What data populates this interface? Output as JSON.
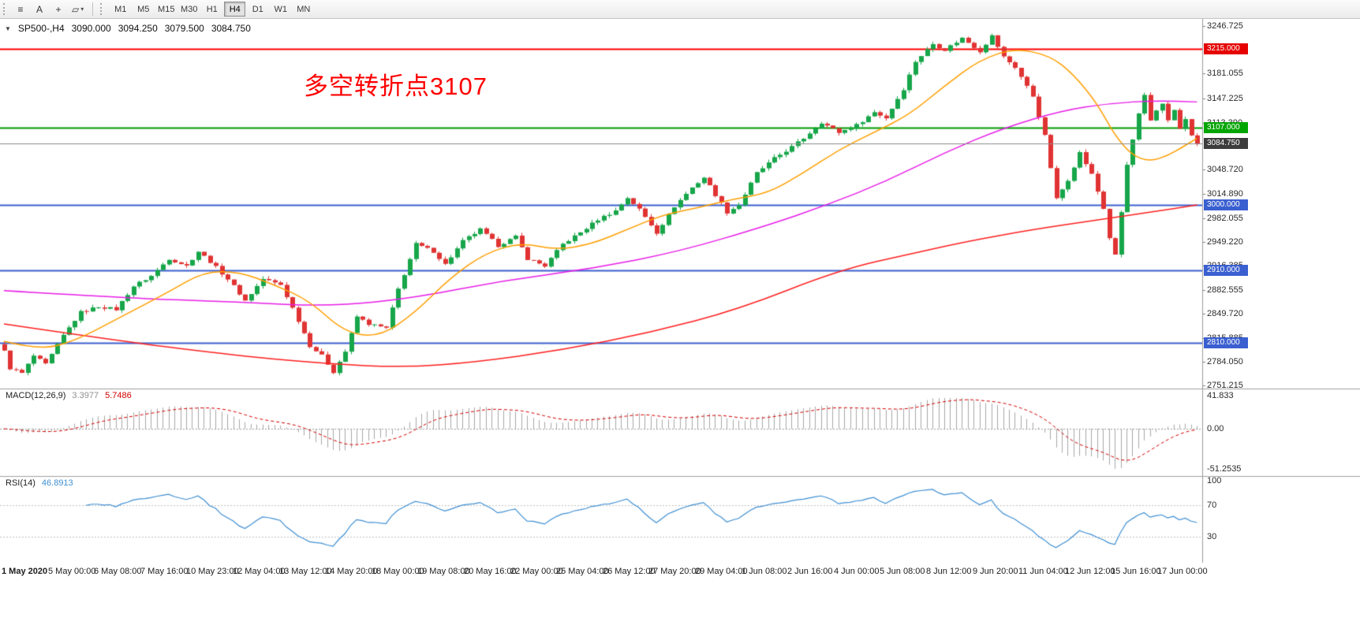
{
  "toolbar": {
    "icons": {
      "menu": "≡",
      "text_tool": "A",
      "crosshair": "+",
      "shapes": "▱",
      "caret_small": "▾"
    },
    "timeframes": [
      "M1",
      "M5",
      "M15",
      "M30",
      "H1",
      "H4",
      "D1",
      "W1",
      "MN"
    ],
    "active_timeframe": "H4"
  },
  "chart": {
    "header": {
      "caret": "▼",
      "symbol": "SP500-,H4",
      "open": "3090.000",
      "high": "3094.250",
      "low": "3079.500",
      "close": "3084.750"
    },
    "annotation": {
      "text": "多空转折点3107",
      "color": "#ff0000"
    },
    "hlines": [
      {
        "label": "3215.000",
        "price": 3215.0,
        "line_color": "#ff0000",
        "badge_color": "#e60000",
        "width": 2
      },
      {
        "label": "3107.000",
        "price": 3107.0,
        "line_color": "#009b00",
        "badge_color": "#00a500",
        "width": 2
      },
      {
        "label": "3000.000",
        "price": 3000.0,
        "line_color": "#3a5fd0",
        "badge_color": "#3a5fd0",
        "width": 2
      },
      {
        "label": "2910.000",
        "price": 2910.0,
        "line_color": "#3a5fd0",
        "badge_color": "#3a5fd0",
        "width": 2
      },
      {
        "label": "2810.000",
        "price": 2810.0,
        "line_color": "#3a5fd0",
        "badge_color": "#3a5fd0",
        "width": 2
      }
    ],
    "current_price": {
      "label": "3084.750",
      "price": 3084.75,
      "line_color": "#8c8c8c",
      "badge_color": "#3d3d3d"
    },
    "axis_ticks": [
      3246.725,
      3181.055,
      3147.225,
      3113.39,
      3048.72,
      3014.89,
      2982.055,
      2949.22,
      2916.385,
      2882.555,
      2849.72,
      2815.885,
      2784.05,
      2751.215
    ],
    "time_labels": [
      "1 May 2020",
      "5 May 00:00",
      "6 May 08:00",
      "7 May 16:00",
      "10 May 23:00",
      "12 May 04:00",
      "13 May 12:00",
      "14 May 20:00",
      "18 May 00:00",
      "19 May 08:00",
      "20 May 16:00",
      "22 May 00:00",
      "25 May 04:00",
      "26 May 12:00",
      "27 May 20:00",
      "29 May 04:00",
      "1 Jun 08:00",
      "2 Jun 16:00",
      "4 Jun 00:00",
      "5 Jun 08:00",
      "8 Jun 12:00",
      "9 Jun 20:00",
      "11 Jun 04:00",
      "12 Jun 12:00",
      "15 Jun 16:00",
      "17 Jun 00:00"
    ]
  },
  "macd": {
    "label": "MACD(12,26,9)",
    "value_main": "3.3977",
    "value_signal": "5.7486",
    "axis": [
      {
        "label": "41.833",
        "value": 41.833
      },
      {
        "label": "0.00",
        "value": 0
      },
      {
        "label": "-51.2535",
        "value": -51.2535
      }
    ]
  },
  "rsi": {
    "label": "RSI(14)",
    "value": "46.8913",
    "axis": [
      {
        "label": "100",
        "value": 100
      },
      {
        "label": "70",
        "value": 70
      },
      {
        "label": "30",
        "value": 30
      }
    ],
    "levels": [
      70,
      30
    ]
  },
  "chart_data": {
    "type": "candlestick",
    "symbol": "SP500-",
    "timeframe": "H4",
    "time_range": {
      "start": "1 May 2020",
      "end": "17 Jun 2020"
    },
    "current_ohlc": {
      "open": 3090.0,
      "high": 3094.25,
      "low": 3079.5,
      "close": 3084.75
    },
    "price_axis": {
      "max": 3246.725,
      "min": 2751.215
    },
    "key_levels": [
      3215,
      3107,
      3000,
      2910,
      2810
    ],
    "bar_count": 204,
    "bar_spacing": 7.45,
    "first_open": 2808,
    "last_close": 3084.75,
    "noise": 4,
    "wick": 4,
    "close_anchors": [
      [
        0,
        2798
      ],
      [
        1,
        2775
      ],
      [
        3,
        2768
      ],
      [
        5,
        2792
      ],
      [
        7,
        2780
      ],
      [
        10,
        2820
      ],
      [
        13,
        2852
      ],
      [
        16,
        2860
      ],
      [
        19,
        2856
      ],
      [
        22,
        2888
      ],
      [
        25,
        2902
      ],
      [
        28,
        2926
      ],
      [
        31,
        2916
      ],
      [
        33,
        2936
      ],
      [
        35,
        2922
      ],
      [
        38,
        2898
      ],
      [
        41,
        2868
      ],
      [
        44,
        2898
      ],
      [
        47,
        2890
      ],
      [
        49,
        2858
      ],
      [
        52,
        2806
      ],
      [
        54,
        2792
      ],
      [
        56,
        2770
      ],
      [
        58,
        2798
      ],
      [
        60,
        2846
      ],
      [
        62,
        2836
      ],
      [
        65,
        2830
      ],
      [
        67,
        2884
      ],
      [
        70,
        2946
      ],
      [
        73,
        2936
      ],
      [
        75,
        2918
      ],
      [
        78,
        2950
      ],
      [
        81,
        2966
      ],
      [
        84,
        2944
      ],
      [
        87,
        2956
      ],
      [
        89,
        2926
      ],
      [
        92,
        2916
      ],
      [
        95,
        2946
      ],
      [
        98,
        2962
      ],
      [
        101,
        2980
      ],
      [
        104,
        2992
      ],
      [
        106,
        3010
      ],
      [
        108,
        2994
      ],
      [
        111,
        2962
      ],
      [
        114,
        2998
      ],
      [
        117,
        3024
      ],
      [
        119,
        3038
      ],
      [
        121,
        3014
      ],
      [
        123,
        2990
      ],
      [
        125,
        3000
      ],
      [
        128,
        3044
      ],
      [
        131,
        3064
      ],
      [
        134,
        3080
      ],
      [
        136,
        3092
      ],
      [
        139,
        3114
      ],
      [
        142,
        3100
      ],
      [
        145,
        3110
      ],
      [
        148,
        3128
      ],
      [
        150,
        3120
      ],
      [
        153,
        3160
      ],
      [
        155,
        3198
      ],
      [
        158,
        3222
      ],
      [
        160,
        3214
      ],
      [
        163,
        3230
      ],
      [
        166,
        3212
      ],
      [
        168,
        3233
      ],
      [
        170,
        3204
      ],
      [
        172,
        3190
      ],
      [
        175,
        3150
      ],
      [
        177,
        3095
      ],
      [
        179,
        3008
      ],
      [
        181,
        3035
      ],
      [
        183,
        3072
      ],
      [
        185,
        3042
      ],
      [
        187,
        2995
      ],
      [
        188,
        2955
      ],
      [
        189,
        2930
      ],
      [
        190,
        2990
      ],
      [
        191,
        3055
      ],
      [
        192,
        3090
      ],
      [
        193,
        3125
      ],
      [
        194,
        3150
      ],
      [
        195,
        3115
      ],
      [
        196,
        3130
      ],
      [
        197,
        3140
      ],
      [
        198,
        3118
      ],
      [
        199,
        3130
      ],
      [
        200,
        3105
      ],
      [
        201,
        3118
      ],
      [
        202,
        3095
      ],
      [
        203,
        3084.75
      ]
    ],
    "ma_orange": [
      [
        0,
        2812
      ],
      [
        6,
        2800
      ],
      [
        12,
        2812
      ],
      [
        20,
        2846
      ],
      [
        28,
        2880
      ],
      [
        34,
        2908
      ],
      [
        40,
        2908
      ],
      [
        46,
        2890
      ],
      [
        52,
        2868
      ],
      [
        58,
        2824
      ],
      [
        64,
        2818
      ],
      [
        70,
        2852
      ],
      [
        76,
        2900
      ],
      [
        82,
        2934
      ],
      [
        88,
        2948
      ],
      [
        94,
        2938
      ],
      [
        100,
        2946
      ],
      [
        106,
        2966
      ],
      [
        112,
        2986
      ],
      [
        118,
        2996
      ],
      [
        124,
        3008
      ],
      [
        130,
        3016
      ],
      [
        136,
        3044
      ],
      [
        142,
        3076
      ],
      [
        148,
        3100
      ],
      [
        154,
        3124
      ],
      [
        160,
        3164
      ],
      [
        166,
        3200
      ],
      [
        172,
        3216
      ],
      [
        178,
        3206
      ],
      [
        182,
        3180
      ],
      [
        186,
        3140
      ],
      [
        189,
        3096
      ],
      [
        192,
        3068
      ],
      [
        195,
        3060
      ],
      [
        198,
        3068
      ],
      [
        201,
        3082
      ],
      [
        203,
        3092
      ]
    ],
    "ma_magenta": [
      [
        0,
        2882
      ],
      [
        20,
        2872
      ],
      [
        40,
        2866
      ],
      [
        56,
        2860
      ],
      [
        70,
        2872
      ],
      [
        85,
        2896
      ],
      [
        100,
        2912
      ],
      [
        115,
        2936
      ],
      [
        130,
        2972
      ],
      [
        140,
        3000
      ],
      [
        150,
        3032
      ],
      [
        160,
        3072
      ],
      [
        170,
        3106
      ],
      [
        180,
        3130
      ],
      [
        188,
        3140
      ],
      [
        196,
        3144
      ],
      [
        203,
        3142
      ]
    ],
    "ma_red": [
      [
        0,
        2836
      ],
      [
        20,
        2812
      ],
      [
        40,
        2792
      ],
      [
        55,
        2781
      ],
      [
        68,
        2776
      ],
      [
        80,
        2783
      ],
      [
        95,
        2800
      ],
      [
        110,
        2824
      ],
      [
        125,
        2856
      ],
      [
        142,
        2910
      ],
      [
        155,
        2934
      ],
      [
        164,
        2950
      ],
      [
        175,
        2966
      ],
      [
        185,
        2978
      ],
      [
        195,
        2990
      ],
      [
        203,
        3000
      ]
    ],
    "colors": {
      "bull": "#17a64a",
      "bear": "#e03333",
      "ma_fast": "#ff9f00",
      "ma_mid": "#e81ee8",
      "ma_slow": "#ff2020",
      "macd_hist": "#a8a8a8",
      "macd_signal": "#d40000",
      "rsi": "#3f8fd2"
    },
    "indicators": {
      "macd": {
        "fast": 12,
        "slow": 26,
        "signal": 9,
        "last_main": 3.3977,
        "last_signal": 5.7486,
        "axis_max": 41.833,
        "axis_min": -51.2535
      },
      "rsi": {
        "period": 14,
        "last": 46.8913,
        "levels": [
          70,
          30
        ]
      }
    }
  }
}
